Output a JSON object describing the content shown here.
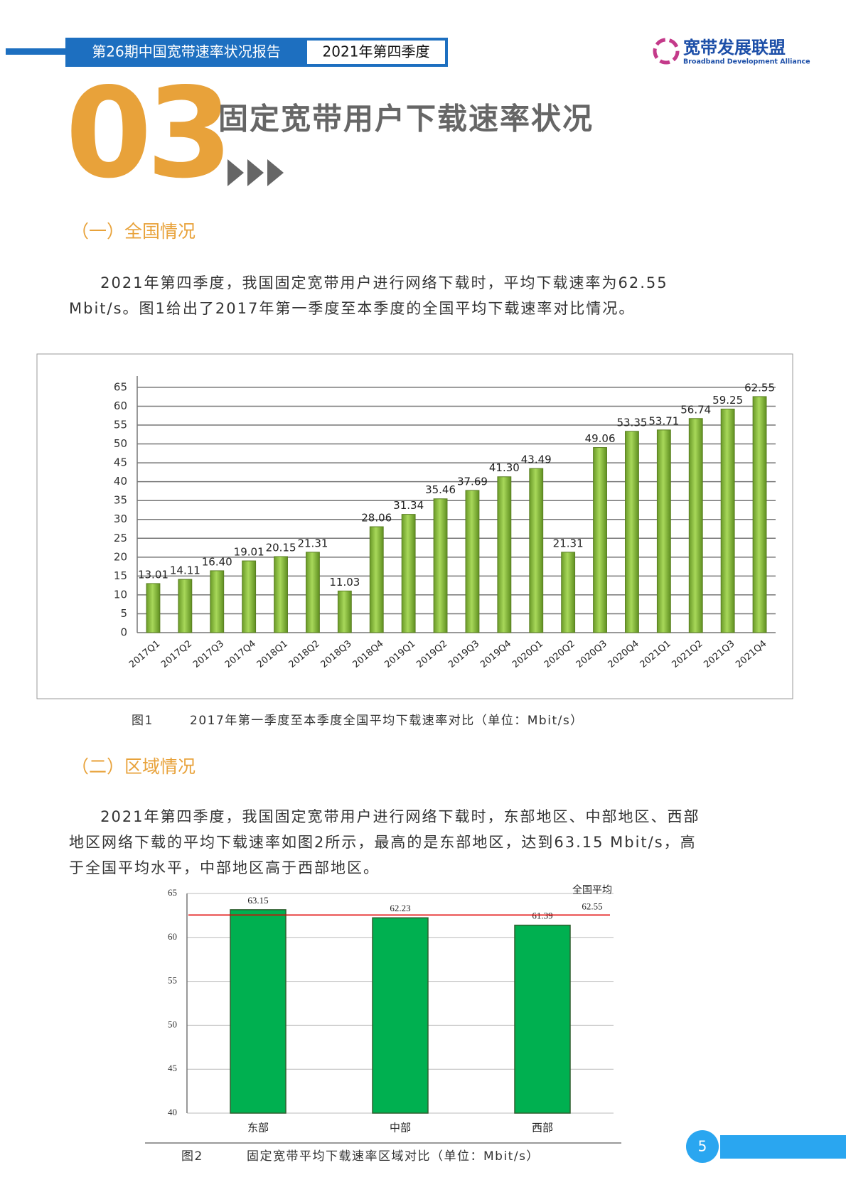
{
  "header": {
    "report": "第26期中国宽带速率状况报告",
    "period": "2021年第四季度",
    "logo_cn": "宽带发展联盟",
    "logo_en": "Broadband Development Alliance"
  },
  "chapter": {
    "number": "03",
    "title": "固定宽带用户下载速率状况"
  },
  "sections": [
    {
      "heading": "（一）全国情况",
      "paragraph": "2021年第四季度，我国固定宽带用户进行网络下载时，平均下载速率为62.55 Mbit/s。图1给出了2017年第一季度至本季度的全国平均下载速率对比情况。",
      "figure": "图1",
      "caption": "2017年第一季度至本季度全国平均下载速率对比（单位：Mbit/s）"
    },
    {
      "heading": "（二）区域情况",
      "paragraph": "2021年第四季度，我国固定宽带用户进行网络下载时，东部地区、中部地区、西部地区网络下载的平均下载速率如图2所示，最高的是东部地区，达到63.15 Mbit/s，高于全国平均水平，中部地区高于西部地区。",
      "figure": "图2",
      "caption": "固定宽带平均下载速率区域对比（单位：Mbit/s）"
    }
  ],
  "chart_data": [
    {
      "type": "bar",
      "categories": [
        "2017Q1",
        "2017Q2",
        "2017Q3",
        "2017Q4",
        "2018Q1",
        "2018Q2",
        "2018Q3",
        "2018Q4",
        "2019Q1",
        "2019Q2",
        "2019Q3",
        "2019Q4",
        "2020Q1",
        "2020Q2",
        "2020Q3",
        "2020Q4",
        "2021Q1",
        "2021Q2",
        "2021Q3",
        "2021Q4"
      ],
      "values": [
        13.01,
        14.11,
        16.4,
        19.01,
        20.15,
        21.31,
        11.03,
        28.06,
        31.34,
        35.46,
        37.69,
        41.3,
        43.49,
        21.31,
        49.06,
        53.35,
        53.71,
        56.74,
        59.25,
        62.55
      ],
      "value_labels": [
        "13.01",
        "14.11",
        "16.40",
        "19.01",
        "20.15",
        "21.31",
        "11.03",
        "28.06",
        "31.34",
        "35.46",
        "37.69",
        "41.30",
        "43.49",
        "21.31",
        "49.06",
        "53.35",
        "53.71",
        "56.74",
        "59.25",
        "62.55"
      ],
      "color": "#8cc43c",
      "ylim": [
        0,
        68
      ],
      "yticks": [
        0,
        5,
        10,
        15,
        20,
        25,
        30,
        35,
        40,
        45,
        50,
        55,
        60,
        65
      ],
      "grid": true
    },
    {
      "type": "bar",
      "categories": [
        "东部",
        "中部",
        "西部"
      ],
      "values": [
        63.15,
        62.23,
        61.39
      ],
      "color": "#00b050",
      "ylim": [
        40,
        65
      ],
      "yticks": [
        40,
        45,
        50,
        55,
        60,
        65
      ],
      "grid": true,
      "reference": {
        "label": "全国平均",
        "value": 62.55,
        "color": "#e00000"
      }
    }
  ],
  "page_number": "5"
}
